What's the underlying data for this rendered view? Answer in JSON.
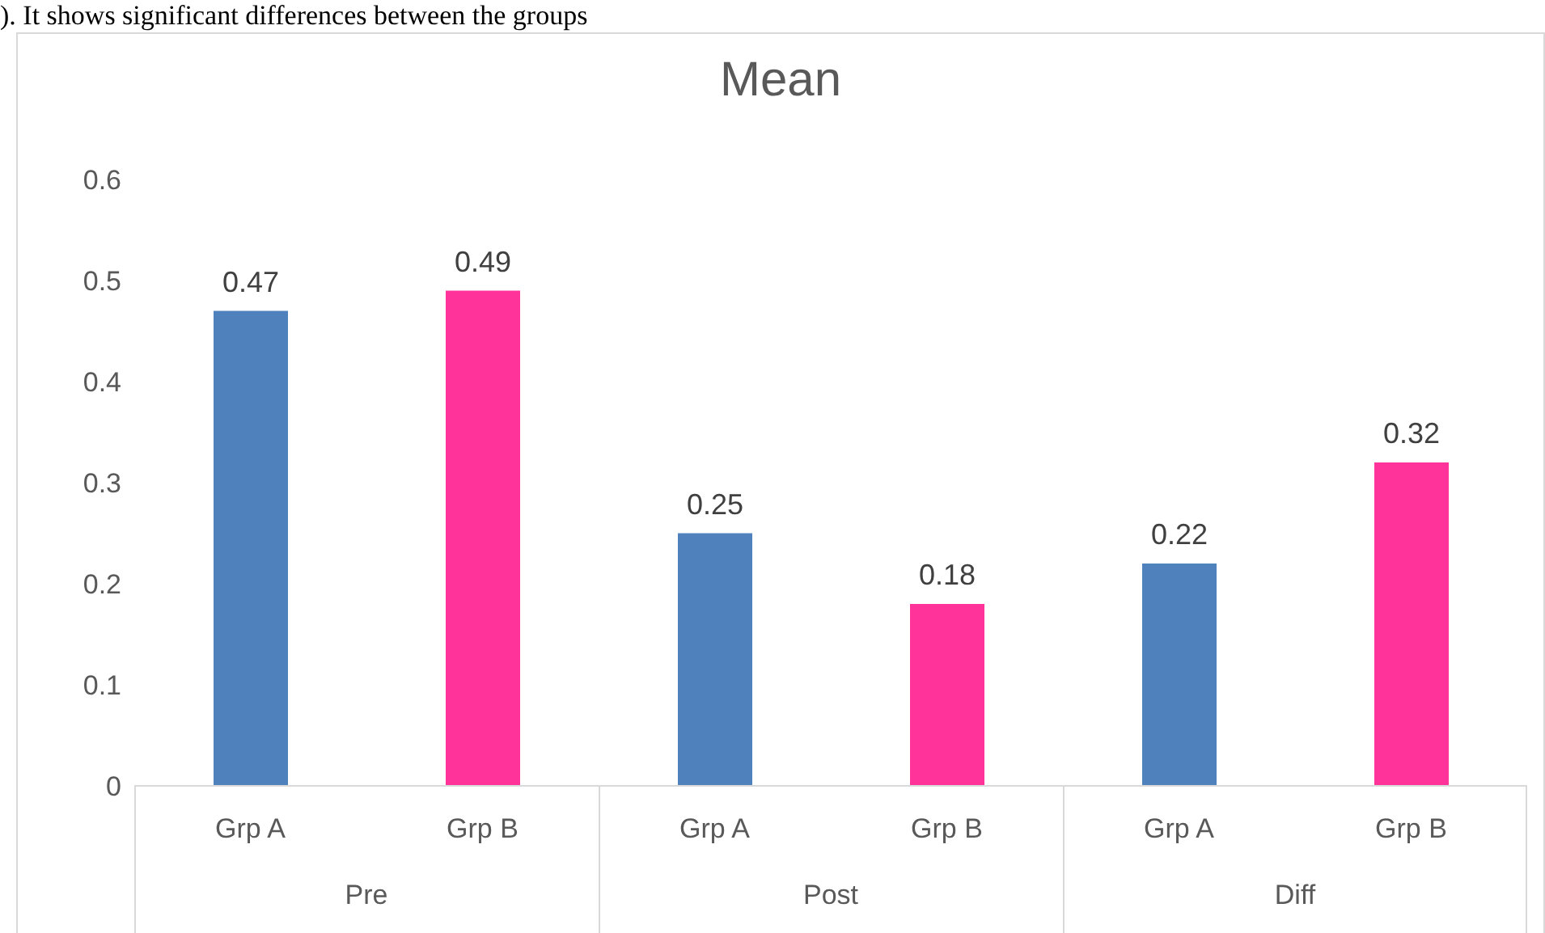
{
  "chart_data": {
    "type": "bar",
    "title": "Mean",
    "categories": [
      "Grp A",
      "Grp B",
      "Grp A",
      "Grp B",
      "Grp A",
      "Grp B"
    ],
    "values": [
      0.47,
      0.49,
      0.25,
      0.18,
      0.22,
      0.32
    ],
    "colors": [
      "#4f81bd",
      "#ff3399",
      "#4f81bd",
      "#ff3399",
      "#4f81bd",
      "#ff3399"
    ],
    "ylim": [
      0,
      0.6
    ],
    "yticks": [
      0,
      0.1,
      0.2,
      0.3,
      0.4,
      0.5,
      0.6
    ],
    "data_labels": true,
    "annotations": [
      "). It shows significant differences between the groups",
      "Pre",
      "Post",
      "Diff"
    ]
  }
}
